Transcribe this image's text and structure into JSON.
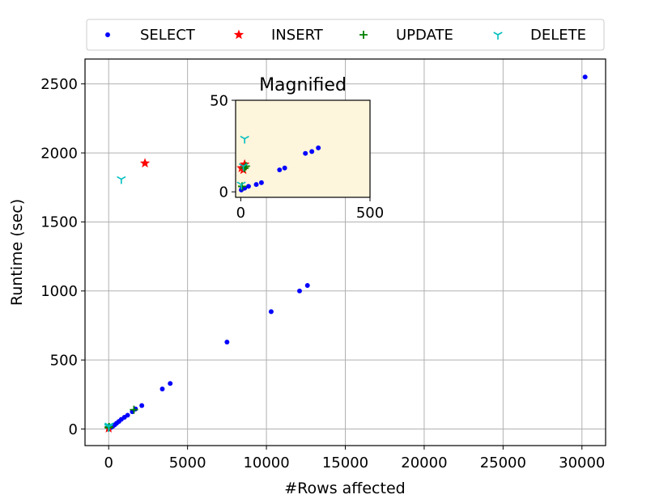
{
  "chart_data": [
    {
      "type": "scatter",
      "title": "",
      "xlabel": "#Rows affected",
      "ylabel": "Runtime (sec)",
      "xlim": [
        -1500,
        31500
      ],
      "ylim": [
        -120,
        2680
      ],
      "xticks": [
        0,
        5000,
        10000,
        15000,
        20000,
        25000,
        30000
      ],
      "xtick_labels": [
        "0",
        "5000",
        "10000",
        "15000",
        "20000",
        "25000",
        "30000"
      ],
      "yticks": [
        0,
        500,
        1000,
        1500,
        2000,
        2500
      ],
      "ytick_labels": [
        "0",
        "500",
        "1000",
        "1500",
        "2000",
        "2500"
      ],
      "grid": true,
      "legend_position": "top-center",
      "series": [
        {
          "name": "SELECT",
          "color": "#0000ff",
          "marker": "dot",
          "x": [
            0,
            30,
            60,
            120,
            180,
            260,
            380,
            500,
            650,
            800,
            1000,
            1200,
            1500,
            1700,
            2100,
            3400,
            3900,
            7500,
            10300,
            12100,
            12600,
            30200
          ],
          "y": [
            0,
            2,
            5,
            10,
            14,
            20,
            30,
            42,
            55,
            70,
            85,
            100,
            125,
            145,
            170,
            290,
            330,
            630,
            850,
            1000,
            1040,
            2550
          ]
        },
        {
          "name": "INSERT",
          "color": "#ff0000",
          "marker": "star",
          "x": [
            0,
            2300
          ],
          "y": [
            5,
            1925
          ]
        },
        {
          "name": "UPDATE",
          "color": "#008000",
          "marker": "plus",
          "x": [
            0,
            30,
            1600
          ],
          "y": [
            10,
            15,
            140
          ]
        },
        {
          "name": "DELETE",
          "color": "#00bfbf",
          "marker": "tri",
          "x": [
            0,
            20,
            800
          ],
          "y": [
            15,
            25,
            1810
          ]
        }
      ]
    },
    {
      "type": "scatter",
      "title": "Magnified",
      "background": "#fdf5dc",
      "xlim": [
        -20,
        500
      ],
      "ylim": [
        -3,
        50
      ],
      "xticks": [
        0,
        500
      ],
      "xtick_labels": [
        "0",
        "500"
      ],
      "yticks": [
        0,
        50
      ],
      "ytick_labels": [
        "0",
        "50"
      ],
      "grid": false,
      "series": [
        {
          "name": "SELECT",
          "color": "#0000ff",
          "marker": "dot",
          "x": [
            2,
            5,
            10,
            15,
            30,
            60,
            80,
            150,
            170,
            250,
            275,
            300
          ],
          "y": [
            1,
            2,
            2,
            2,
            3,
            4,
            5,
            12,
            13,
            21,
            22,
            24
          ]
        },
        {
          "name": "INSERT",
          "color": "#ff0000",
          "marker": "star",
          "x": [
            3,
            10,
            15
          ],
          "y": [
            13,
            12,
            15
          ]
        },
        {
          "name": "UPDATE",
          "color": "#008000",
          "marker": "plus",
          "x": [
            5,
            15,
            20
          ],
          "y": [
            3,
            13,
            14
          ]
        },
        {
          "name": "DELETE",
          "color": "#00bfbf",
          "marker": "tri",
          "x": [
            2,
            10,
            15
          ],
          "y": [
            4,
            14,
            29
          ]
        }
      ]
    }
  ]
}
